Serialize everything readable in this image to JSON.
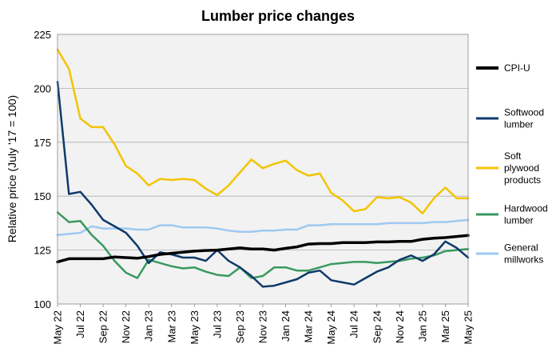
{
  "chart_data": {
    "type": "line",
    "title": "Lumber price changes",
    "ylabel": "Relative price (July '17 = 100)",
    "xlabel": "",
    "ylim": [
      100,
      225
    ],
    "yticks": [
      100,
      125,
      150,
      175,
      200,
      225
    ],
    "grid": true,
    "legend_placement": "right",
    "x": [
      "May 22",
      "Jun 22",
      "Jul 22",
      "Aug 22",
      "Sep 22",
      "Oct 22",
      "Nov 22",
      "Dec 22",
      "Jan 23",
      "Feb 23",
      "Mar 23",
      "Apr 23",
      "May 23",
      "Jun 23",
      "Jul 23",
      "Aug 23",
      "Sep 23",
      "Oct 23",
      "Nov 23",
      "Dec 23",
      "Jan 24",
      "Feb 24",
      "Mar 24",
      "Apr 24",
      "May 24",
      "Jun 24",
      "Jul 24",
      "Aug 24",
      "Sep 24",
      "Oct 24",
      "Nov 24",
      "Dec 24",
      "Jan 25",
      "Feb 25",
      "Mar 25",
      "Apr 25",
      "May 25"
    ],
    "xtick_labels": [
      "May 22",
      "Jul 22",
      "Sep 22",
      "Nov 22",
      "Jan 23",
      "Mar 23",
      "May 23",
      "Jul 23",
      "Sep 23",
      "Nov 23",
      "Jan 24",
      "Mar 24",
      "May 24",
      "Jul 24",
      "Sep 24",
      "Nov 24",
      "Jan 25",
      "Mar 25",
      "May 25"
    ],
    "series": [
      {
        "name": "CPI-U",
        "color": "#000000",
        "width": 3.5,
        "values": [
          119.5,
          121,
          121,
          121,
          121,
          121.8,
          121.5,
          121.2,
          122,
          123,
          123.5,
          124,
          124.5,
          124.8,
          125,
          125.5,
          126,
          125.5,
          125.5,
          125,
          125.8,
          126.5,
          127.8,
          128,
          128,
          128.5,
          128.5,
          128.5,
          128.8,
          128.8,
          129,
          129,
          130,
          130.5,
          130.8,
          131.3,
          131.8
        ]
      },
      {
        "name": "Softwood lumber",
        "color": "#0f3a6b",
        "width": 2.5,
        "values": [
          203,
          151,
          152,
          146,
          139,
          136,
          133,
          127,
          119,
          124,
          123,
          121.5,
          121.5,
          120,
          125,
          120,
          117,
          113,
          108,
          108.5,
          110,
          111.5,
          114.5,
          115.5,
          111,
          110,
          109,
          112,
          115,
          117,
          120.5,
          122.5,
          120,
          123,
          129,
          126,
          121.5
        ]
      },
      {
        "name": "Soft plywood products",
        "color": "#f2c400",
        "width": 2.5,
        "values": [
          218,
          209,
          186,
          182,
          182,
          174,
          164,
          160.5,
          155,
          158,
          157.5,
          158,
          157.5,
          153.5,
          150.5,
          155,
          161,
          167,
          163,
          165,
          166.5,
          162,
          159.5,
          160.5,
          151.5,
          148,
          143,
          144,
          149.5,
          149,
          149.5,
          147,
          142,
          149,
          154,
          149,
          149
        ]
      },
      {
        "name": "Hardwood lumber",
        "color": "#3a9960",
        "width": 2.5,
        "values": [
          142.5,
          138,
          138.5,
          132,
          127,
          120,
          114.5,
          112,
          120.5,
          119,
          117.5,
          116.5,
          117,
          115,
          113.5,
          113,
          117,
          112,
          113,
          117,
          117,
          115.5,
          115.5,
          117,
          118.5,
          119,
          119.5,
          119.5,
          119,
          119.5,
          120,
          121,
          121.5,
          122.5,
          124.5,
          125,
          125.5
        ]
      },
      {
        "name": "General millworks",
        "color": "#9ec9f0",
        "width": 2.5,
        "values": [
          132,
          132.5,
          133,
          136,
          135,
          135,
          135,
          134.5,
          134.5,
          136.5,
          136.5,
          135.5,
          135.5,
          135.5,
          135,
          134,
          133.5,
          133.5,
          134,
          134,
          134.5,
          134.5,
          136.5,
          136.5,
          137,
          137,
          137,
          137,
          137,
          137.5,
          137.5,
          137.5,
          137.5,
          138,
          138,
          138.5,
          139
        ]
      }
    ]
  }
}
